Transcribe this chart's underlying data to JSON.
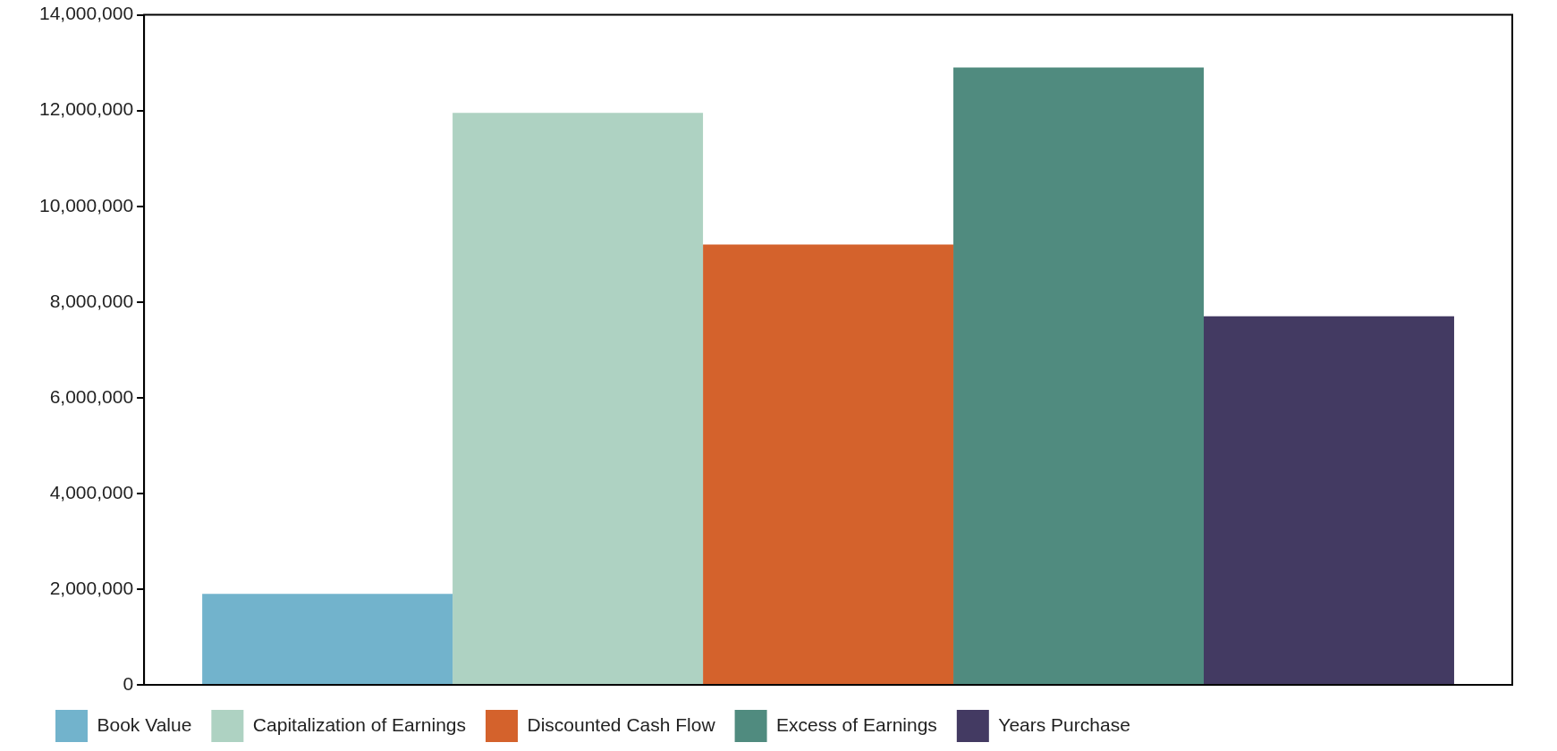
{
  "chart_data": {
    "type": "bar",
    "categories": [
      null
    ],
    "series": [
      {
        "name": "Book Value",
        "color": "#72b3cc",
        "values": [
          1900000
        ]
      },
      {
        "name": "Capitalization of Earnings",
        "color": "#aed2c2",
        "values": [
          11950000
        ]
      },
      {
        "name": "Discounted Cash Flow",
        "color": "#d4622c",
        "values": [
          9200000
        ]
      },
      {
        "name": "Excess of Earnings",
        "color": "#508b7f",
        "values": [
          12900000
        ]
      },
      {
        "name": "Years Purchase",
        "color": "#433a62",
        "values": [
          7700000
        ]
      }
    ],
    "ylim": [
      0,
      14000000
    ],
    "yticks": [
      0,
      {
        "value": 2000000,
        "label": "2,000,000"
      },
      {
        "value": 4000000,
        "label": "4,000,000"
      },
      {
        "value": 6000000,
        "label": "6,000,000"
      },
      {
        "value": 8000000,
        "label": "8,000,000"
      },
      {
        "value": 10000000,
        "label": "10,000,000"
      },
      {
        "value": 12000000,
        "label": "12,000,000"
      },
      {
        "value": 14000000,
        "label": "14,000,000"
      }
    ],
    "grid": false,
    "legend": "bottom",
    "tick_labels": "y"
  }
}
